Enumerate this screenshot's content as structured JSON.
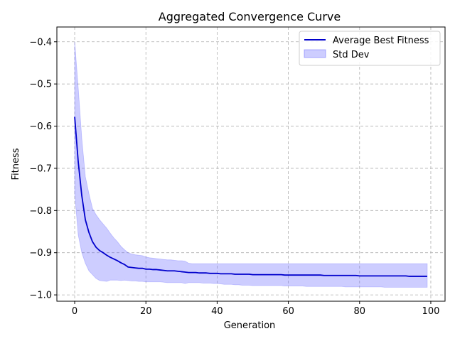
{
  "chart_data": {
    "type": "line",
    "title": "Aggregated Convergence Curve",
    "xlabel": "Generation",
    "ylabel": "Fitness",
    "xlim": [
      -5,
      104
    ],
    "ylim": [
      -1.015,
      -0.365
    ],
    "xticks": [
      0,
      20,
      40,
      60,
      80,
      100
    ],
    "yticks": [
      -1.0,
      -0.9,
      -0.8,
      -0.7,
      -0.6,
      -0.5,
      -0.4
    ],
    "grid": true,
    "legend_position": "upper right",
    "x": [
      0,
      1,
      2,
      3,
      4,
      5,
      6,
      7,
      8,
      9,
      10,
      11,
      12,
      13,
      14,
      15,
      16,
      17,
      18,
      19,
      20,
      21,
      22,
      23,
      24,
      25,
      26,
      27,
      28,
      29,
      30,
      31,
      32,
      33,
      34,
      35,
      36,
      37,
      38,
      39,
      40,
      41,
      42,
      43,
      44,
      45,
      46,
      47,
      48,
      49,
      50,
      51,
      52,
      53,
      54,
      55,
      56,
      57,
      58,
      59,
      60,
      61,
      62,
      63,
      64,
      65,
      66,
      67,
      68,
      69,
      70,
      71,
      72,
      73,
      74,
      75,
      76,
      77,
      78,
      79,
      80,
      81,
      82,
      83,
      84,
      85,
      86,
      87,
      88,
      89,
      90,
      91,
      92,
      93,
      94,
      95,
      96,
      97,
      98,
      99
    ],
    "series": [
      {
        "name": "Average Best Fitness",
        "color": "#0000cc",
        "values": [
          -0.578,
          -0.685,
          -0.765,
          -0.822,
          -0.852,
          -0.874,
          -0.887,
          -0.895,
          -0.9,
          -0.906,
          -0.911,
          -0.915,
          -0.919,
          -0.924,
          -0.928,
          -0.934,
          -0.935,
          -0.936,
          -0.937,
          -0.937,
          -0.939,
          -0.939,
          -0.94,
          -0.94,
          -0.941,
          -0.942,
          -0.943,
          -0.943,
          -0.943,
          -0.944,
          -0.945,
          -0.946,
          -0.947,
          -0.947,
          -0.947,
          -0.948,
          -0.948,
          -0.948,
          -0.949,
          -0.949,
          -0.949,
          -0.95,
          -0.95,
          -0.95,
          -0.95,
          -0.951,
          -0.951,
          -0.951,
          -0.951,
          -0.951,
          -0.952,
          -0.952,
          -0.952,
          -0.952,
          -0.952,
          -0.952,
          -0.952,
          -0.952,
          -0.952,
          -0.953,
          -0.953,
          -0.953,
          -0.953,
          -0.953,
          -0.953,
          -0.953,
          -0.953,
          -0.953,
          -0.953,
          -0.953,
          -0.954,
          -0.954,
          -0.954,
          -0.954,
          -0.954,
          -0.954,
          -0.954,
          -0.954,
          -0.954,
          -0.954,
          -0.955,
          -0.955,
          -0.955,
          -0.955,
          -0.955,
          -0.955,
          -0.955,
          -0.955,
          -0.955,
          -0.955,
          -0.955,
          -0.955,
          -0.955,
          -0.955,
          -0.956,
          -0.956,
          -0.956,
          -0.956,
          -0.956,
          -0.956
        ]
      }
    ],
    "band": {
      "name": "Std Dev",
      "color": "#6666ff",
      "upper": [
        -0.4,
        -0.51,
        -0.63,
        -0.72,
        -0.76,
        -0.795,
        -0.81,
        -0.822,
        -0.832,
        -0.842,
        -0.854,
        -0.865,
        -0.874,
        -0.885,
        -0.893,
        -0.9,
        -0.903,
        -0.905,
        -0.906,
        -0.907,
        -0.91,
        -0.912,
        -0.913,
        -0.914,
        -0.915,
        -0.916,
        -0.917,
        -0.917,
        -0.918,
        -0.919,
        -0.919,
        -0.92,
        -0.925,
        -0.926,
        -0.926,
        -0.926,
        -0.926,
        -0.926,
        -0.926,
        -0.926,
        -0.926,
        -0.926,
        -0.926,
        -0.926,
        -0.926,
        -0.926,
        -0.926,
        -0.926,
        -0.926,
        -0.926,
        -0.926,
        -0.926,
        -0.926,
        -0.926,
        -0.926,
        -0.926,
        -0.926,
        -0.926,
        -0.926,
        -0.926,
        -0.926,
        -0.926,
        -0.926,
        -0.926,
        -0.926,
        -0.926,
        -0.926,
        -0.926,
        -0.926,
        -0.926,
        -0.926,
        -0.926,
        -0.926,
        -0.926,
        -0.926,
        -0.926,
        -0.926,
        -0.926,
        -0.926,
        -0.926,
        -0.926,
        -0.926,
        -0.926,
        -0.926,
        -0.926,
        -0.926,
        -0.926,
        -0.926,
        -0.926,
        -0.926,
        -0.926,
        -0.926,
        -0.926,
        -0.926,
        -0.926,
        -0.926,
        -0.926,
        -0.926,
        -0.926,
        -0.926
      ],
      "lower": [
        -0.76,
        -0.858,
        -0.9,
        -0.925,
        -0.943,
        -0.952,
        -0.961,
        -0.966,
        -0.967,
        -0.968,
        -0.965,
        -0.965,
        -0.965,
        -0.966,
        -0.965,
        -0.966,
        -0.967,
        -0.967,
        -0.968,
        -0.968,
        -0.969,
        -0.969,
        -0.969,
        -0.969,
        -0.969,
        -0.97,
        -0.971,
        -0.971,
        -0.971,
        -0.971,
        -0.971,
        -0.973,
        -0.971,
        -0.971,
        -0.971,
        -0.971,
        -0.972,
        -0.972,
        -0.972,
        -0.973,
        -0.973,
        -0.974,
        -0.975,
        -0.975,
        -0.975,
        -0.976,
        -0.976,
        -0.977,
        -0.977,
        -0.977,
        -0.978,
        -0.978,
        -0.978,
        -0.978,
        -0.978,
        -0.978,
        -0.978,
        -0.978,
        -0.978,
        -0.979,
        -0.979,
        -0.979,
        -0.979,
        -0.979,
        -0.979,
        -0.98,
        -0.98,
        -0.98,
        -0.98,
        -0.98,
        -0.98,
        -0.98,
        -0.98,
        -0.98,
        -0.98,
        -0.98,
        -0.981,
        -0.981,
        -0.981,
        -0.981,
        -0.981,
        -0.981,
        -0.981,
        -0.981,
        -0.981,
        -0.981,
        -0.981,
        -0.982,
        -0.982,
        -0.982,
        -0.982,
        -0.982,
        -0.982,
        -0.982,
        -0.982,
        -0.982,
        -0.982,
        -0.982,
        -0.982,
        -0.982
      ]
    },
    "legend": [
      "Average Best Fitness",
      "Std Dev"
    ]
  }
}
